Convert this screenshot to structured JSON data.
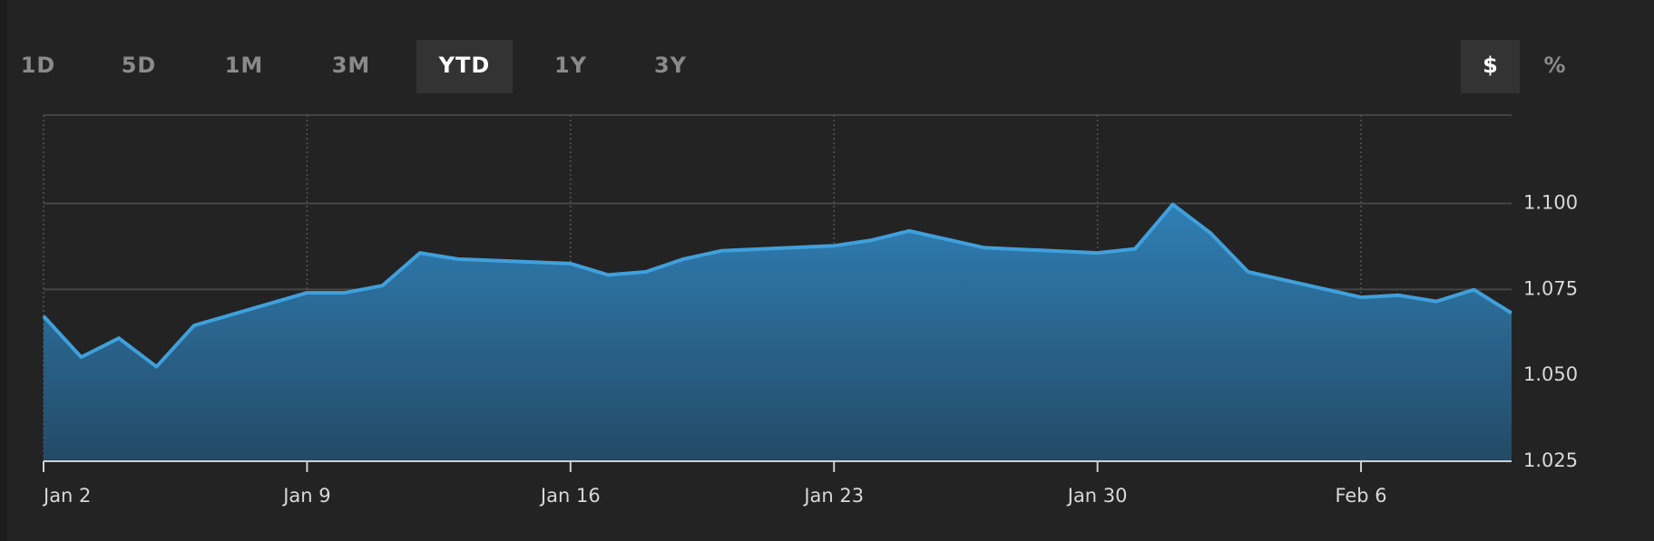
{
  "range_buttons": [
    {
      "label": "1D",
      "selected": false
    },
    {
      "label": "5D",
      "selected": false
    },
    {
      "label": "1M",
      "selected": false
    },
    {
      "label": "3M",
      "selected": false
    },
    {
      "label": "YTD",
      "selected": true
    },
    {
      "label": "1Y",
      "selected": false
    },
    {
      "label": "3Y",
      "selected": false
    }
  ],
  "unit_buttons": [
    {
      "label": "$",
      "selected": true
    },
    {
      "label": "%",
      "selected": false
    }
  ],
  "chart_data": {
    "type": "area",
    "color": "#3fa0dc",
    "grid": true,
    "x": [
      0,
      1,
      2,
      3,
      4,
      7,
      8,
      9,
      10,
      11,
      14,
      15,
      16,
      17,
      18,
      21,
      22,
      23,
      25,
      28,
      29,
      30,
      31,
      32,
      35,
      36,
      37,
      38,
      39
    ],
    "values": [
      1.0672,
      1.0553,
      1.0608,
      1.0525,
      1.0645,
      1.074,
      1.074,
      1.0761,
      1.0856,
      1.0838,
      1.0825,
      1.0792,
      1.0801,
      1.0838,
      1.0862,
      1.0877,
      1.0893,
      1.092,
      1.0871,
      1.0856,
      1.0868,
      1.0997,
      1.0914,
      1.0801,
      1.0727,
      1.0733,
      1.0715,
      1.0749,
      1.0681
    ],
    "xlim": [
      0,
      39
    ],
    "xticks": [
      {
        "value": 0,
        "label": "Jan 2"
      },
      {
        "value": 7,
        "label": "Jan 9"
      },
      {
        "value": 14,
        "label": "Jan 16"
      },
      {
        "value": 21,
        "label": "Jan 23"
      },
      {
        "value": 28,
        "label": "Jan 30"
      },
      {
        "value": 35,
        "label": "Feb 6"
      }
    ],
    "ylim": [
      1.025,
      1.1257
    ],
    "yticks": [
      {
        "value": 1.025,
        "label": "1.025"
      },
      {
        "value": 1.05,
        "label": "1.050"
      },
      {
        "value": 1.075,
        "label": "1.075"
      },
      {
        "value": 1.1,
        "label": "1.100"
      }
    ]
  }
}
